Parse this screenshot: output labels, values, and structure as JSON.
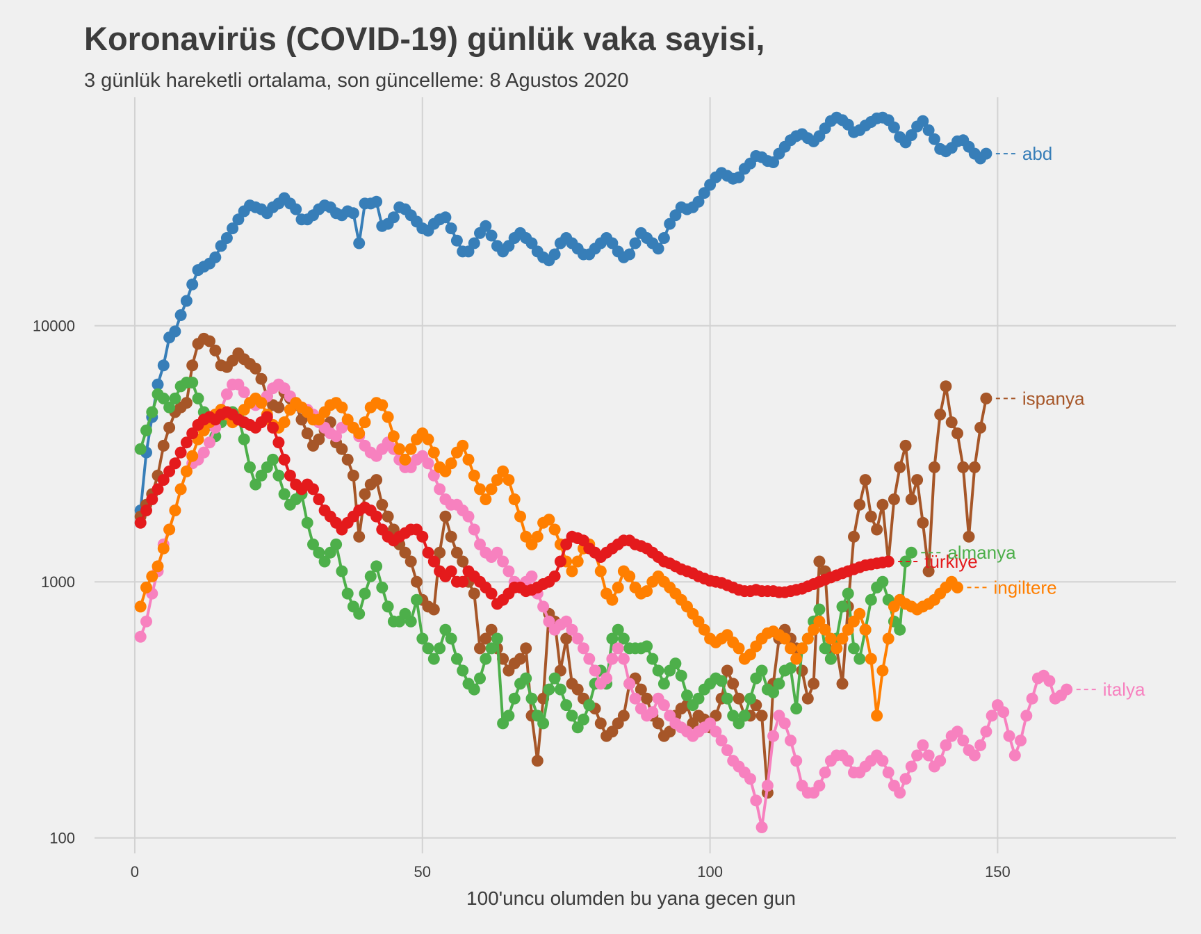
{
  "chart_data": {
    "type": "line",
    "title": "Koronavirüs (COVID-19) günlük vaka sayisi,",
    "subtitle": "3 günlük hareketli ortalama, son güncelleme: 8 Agustos 2020",
    "xlabel": "100'uncu olumden bu yana gecen gun",
    "ylabel": "",
    "x_ticks": [
      0,
      50,
      100,
      150
    ],
    "y_ticks": [
      100,
      1000,
      10000
    ],
    "y_scale": "log",
    "xlim": [
      -7,
      181
    ],
    "ylim": [
      87,
      78000
    ],
    "grid": true,
    "legend": "direct labels at line ends",
    "series": [
      {
        "name": "abd",
        "color": "#377eb8",
        "start_day": 1,
        "values": [
          1900,
          3200,
          4400,
          5900,
          7000,
          9000,
          9500,
          11000,
          12500,
          14500,
          16500,
          17000,
          17500,
          18500,
          20500,
          22000,
          24000,
          26000,
          28000,
          29500,
          29000,
          28500,
          27500,
          29000,
          30000,
          31500,
          30000,
          28500,
          26000,
          26000,
          27000,
          28500,
          29500,
          29000,
          27500,
          27000,
          28000,
          27500,
          21000,
          30000,
          30000,
          30500,
          24500,
          25000,
          26500,
          29000,
          28500,
          27000,
          25500,
          24000,
          23500,
          25000,
          26000,
          26500,
          24000,
          21500,
          19500,
          19500,
          21000,
          23000,
          24500,
          22500,
          20500,
          19500,
          20500,
          22000,
          23000,
          22000,
          21000,
          19500,
          18500,
          18000,
          19000,
          21000,
          22000,
          21000,
          20000,
          19000,
          19000,
          20000,
          21000,
          22000,
          21000,
          19500,
          18500,
          19000,
          21000,
          23000,
          22000,
          21000,
          20000,
          22000,
          25000,
          27000,
          29000,
          28500,
          29000,
          30500,
          33000,
          35500,
          38000,
          39500,
          38500,
          37500,
          38000,
          41000,
          43000,
          46000,
          45500,
          44000,
          43500,
          47000,
          50000,
          53000,
          55000,
          56000,
          54000,
          52500,
          55000,
          59000,
          63000,
          65000,
          63500,
          61000,
          57000,
          58000,
          60500,
          62500,
          64500,
          65000,
          63500,
          59500,
          54500,
          52000,
          55500,
          60000,
          63000,
          58000,
          53500,
          49000,
          48000,
          49500,
          52500,
          53000,
          50000,
          47000,
          45000,
          47000
        ]
      },
      {
        "name": "ispanya",
        "color": "#a65628",
        "start_day": 1,
        "values": [
          1800,
          2000,
          2200,
          2600,
          3400,
          4000,
          4600,
          4800,
          5000,
          7000,
          8500,
          8900,
          8700,
          8000,
          7000,
          6900,
          7300,
          7800,
          7400,
          7100,
          6800,
          6200,
          5300,
          4900,
          4800,
          5500,
          5200,
          4900,
          4300,
          3800,
          3400,
          3600,
          3900,
          4200,
          3500,
          3300,
          3000,
          2600,
          1500,
          2200,
          2400,
          2500,
          2000,
          1800,
          1600,
          1400,
          1300,
          1200,
          1000,
          850,
          800,
          780,
          1300,
          1800,
          1500,
          1300,
          1200,
          1000,
          900,
          550,
          600,
          650,
          550,
          500,
          450,
          480,
          500,
          550,
          300,
          200,
          350,
          750,
          700,
          450,
          600,
          400,
          380,
          350,
          330,
          320,
          280,
          250,
          260,
          280,
          300,
          400,
          420,
          380,
          350,
          300,
          280,
          250,
          260,
          300,
          320,
          330,
          280,
          300,
          290,
          270,
          300,
          350,
          450,
          400,
          350,
          300,
          300,
          330,
          300,
          150,
          400,
          600,
          650,
          600,
          550,
          450,
          350,
          400,
          1200,
          1100,
          500,
          550,
          400,
          800,
          1500,
          2000,
          2500,
          1800,
          1600,
          2000,
          1200,
          2100,
          2800,
          3400,
          2100,
          2500,
          1700,
          1100,
          2800,
          4500,
          5800,
          4200,
          3800,
          2800,
          1500,
          2800,
          4000,
          5200
        ]
      },
      {
        "name": "almanya",
        "color": "#4daf4a",
        "start_day": 1,
        "values": [
          3300,
          3900,
          4600,
          5400,
          5200,
          4800,
          5200,
          5800,
          6000,
          6000,
          5200,
          4600,
          4100,
          3700,
          4200,
          4500,
          4600,
          4400,
          3600,
          2800,
          2400,
          2600,
          2800,
          3000,
          2600,
          2200,
          2000,
          2100,
          2200,
          1700,
          1400,
          1300,
          1200,
          1300,
          1400,
          1100,
          900,
          800,
          750,
          900,
          1050,
          1150,
          950,
          800,
          700,
          700,
          750,
          700,
          850,
          600,
          550,
          500,
          550,
          650,
          600,
          500,
          450,
          400,
          380,
          420,
          500,
          550,
          600,
          280,
          300,
          350,
          400,
          420,
          350,
          300,
          280,
          380,
          420,
          380,
          330,
          300,
          270,
          290,
          330,
          400,
          450,
          400,
          600,
          650,
          600,
          550,
          550,
          550,
          560,
          500,
          450,
          400,
          450,
          480,
          430,
          360,
          330,
          350,
          380,
          400,
          420,
          410,
          350,
          300,
          280,
          300,
          350,
          420,
          450,
          380,
          370,
          400,
          450,
          460,
          320,
          550,
          600,
          700,
          780,
          550,
          500,
          600,
          800,
          900,
          550,
          500,
          650,
          850,
          950,
          1000,
          850,
          700,
          650,
          1200,
          1300
        ]
      },
      {
        "name": "türkiye",
        "color": "#e41a1c",
        "start_day": 1,
        "values": [
          1700,
          1900,
          2100,
          2300,
          2500,
          2700,
          2900,
          3200,
          3500,
          3800,
          4100,
          4300,
          4400,
          4300,
          4500,
          4600,
          4500,
          4300,
          4200,
          4100,
          4000,
          4200,
          4400,
          4000,
          3500,
          3000,
          2600,
          2400,
          2300,
          2400,
          2300,
          2100,
          1900,
          1800,
          1700,
          1600,
          1700,
          1800,
          1900,
          1950,
          1900,
          1800,
          1600,
          1500,
          1450,
          1500,
          1550,
          1600,
          1600,
          1500,
          1300,
          1200,
          1100,
          1050,
          1100,
          1000,
          1000,
          1100,
          1050,
          1000,
          950,
          900,
          820,
          850,
          900,
          950,
          950,
          920,
          930,
          950,
          980,
          1000,
          1050,
          1200,
          1400,
          1500,
          1480,
          1450,
          1350,
          1300,
          1250,
          1300,
          1350,
          1400,
          1450,
          1450,
          1400,
          1380,
          1350,
          1300,
          1250,
          1200,
          1180,
          1150,
          1120,
          1100,
          1080,
          1050,
          1030,
          1010,
          1000,
          990,
          970,
          950,
          930,
          920,
          920,
          930,
          920,
          920,
          920,
          910,
          910,
          920,
          930,
          940,
          960,
          980,
          1000,
          1020,
          1040,
          1060,
          1080,
          1100,
          1120,
          1140,
          1160,
          1170,
          1180,
          1190,
          1200
        ]
      },
      {
        "name": "ingiltere",
        "color": "#ff7f00",
        "start_day": 1,
        "values": [
          800,
          950,
          1050,
          1150,
          1350,
          1600,
          1900,
          2300,
          2700,
          3100,
          3600,
          3900,
          4200,
          4500,
          4700,
          4500,
          4200,
          4300,
          4700,
          5000,
          5200,
          5000,
          4500,
          4100,
          4000,
          4200,
          4700,
          5000,
          4800,
          4600,
          4300,
          4300,
          4600,
          4900,
          5000,
          4800,
          4300,
          4000,
          3800,
          4200,
          4800,
          5000,
          4900,
          4400,
          3700,
          3300,
          3000,
          3300,
          3600,
          3800,
          3600,
          3200,
          2800,
          2700,
          2900,
          3200,
          3400,
          3000,
          2600,
          2300,
          2100,
          2300,
          2500,
          2700,
          2500,
          2100,
          1800,
          1500,
          1400,
          1500,
          1700,
          1750,
          1600,
          1400,
          1200,
          1100,
          1200,
          1350,
          1400,
          1300,
          1100,
          900,
          850,
          950,
          1100,
          1050,
          950,
          900,
          920,
          1000,
          1050,
          1000,
          950,
          900,
          850,
          800,
          750,
          700,
          650,
          600,
          580,
          600,
          620,
          580,
          550,
          500,
          520,
          560,
          600,
          630,
          640,
          620,
          600,
          550,
          500,
          550,
          600,
          650,
          700,
          650,
          600,
          550,
          600,
          650,
          700,
          750,
          650,
          500,
          300,
          450,
          600,
          800,
          850,
          820,
          800,
          780,
          800,
          820,
          850,
          900,
          950,
          1000,
          950
        ]
      },
      {
        "name": "italya",
        "color": "#f781bf",
        "start_day": 1,
        "values": [
          610,
          700,
          900,
          1100,
          1400,
          1600,
          1900,
          2300,
          2700,
          2900,
          3000,
          3200,
          3500,
          4000,
          4700,
          5400,
          5900,
          5900,
          5500,
          5000,
          4900,
          5000,
          5300,
          5700,
          5900,
          5700,
          5300,
          5000,
          4800,
          4700,
          4500,
          4200,
          4000,
          3800,
          3700,
          4000,
          4200,
          4000,
          3700,
          3400,
          3200,
          3100,
          3300,
          3500,
          3300,
          3000,
          2800,
          2800,
          3000,
          3100,
          2900,
          2600,
          2300,
          2100,
          2000,
          2000,
          1900,
          1800,
          1600,
          1400,
          1300,
          1250,
          1300,
          1200,
          1100,
          1000,
          950,
          1000,
          1050,
          900,
          800,
          700,
          650,
          680,
          700,
          650,
          600,
          550,
          500,
          450,
          400,
          420,
          500,
          550,
          500,
          400,
          350,
          320,
          300,
          310,
          350,
          330,
          300,
          280,
          270,
          260,
          250,
          260,
          270,
          280,
          260,
          240,
          220,
          200,
          190,
          180,
          170,
          140,
          110,
          160,
          250,
          300,
          280,
          240,
          200,
          160,
          150,
          150,
          160,
          180,
          200,
          210,
          210,
          200,
          180,
          180,
          190,
          200,
          210,
          200,
          180,
          160,
          150,
          170,
          190,
          210,
          230,
          210,
          190,
          200,
          230,
          250,
          260,
          240,
          220,
          210,
          230,
          260,
          300,
          330,
          310,
          250,
          210,
          240,
          300,
          350,
          420,
          430,
          410,
          350,
          360,
          380
        ]
      }
    ]
  }
}
